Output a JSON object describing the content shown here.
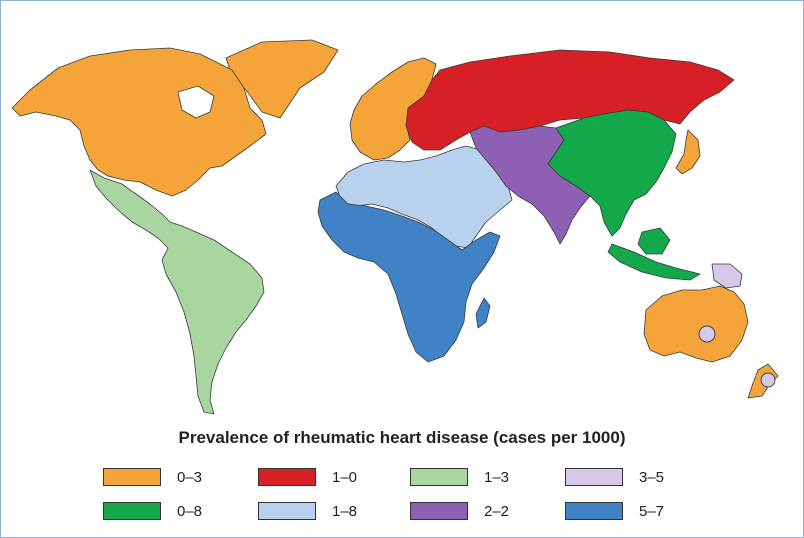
{
  "legend": {
    "title": "Prevalence of rheumatic heart disease (cases per 1000)",
    "items": [
      {
        "label": "0–3",
        "color": "#f5a43a"
      },
      {
        "label": "1–0",
        "color": "#d71f26"
      },
      {
        "label": "1–3",
        "color": "#a8d5a0"
      },
      {
        "label": "3–5",
        "color": "#d6c8e8"
      },
      {
        "label": "0–8",
        "color": "#13a84a"
      },
      {
        "label": "1–8",
        "color": "#b7d1ef"
      },
      {
        "label": "2–2",
        "color": "#8e60b4"
      },
      {
        "label": "5–7",
        "color": "#3f82c6"
      }
    ]
  },
  "regions": [
    {
      "name": "north-america",
      "category": "0–3"
    },
    {
      "name": "europe",
      "category": "0–3"
    },
    {
      "name": "australia",
      "category": "0–3"
    },
    {
      "name": "russia-eastern-europe",
      "category": "1–0"
    },
    {
      "name": "latin-america",
      "category": "1–3"
    },
    {
      "name": "pacific-islands",
      "category": "3–5"
    },
    {
      "name": "east-southeast-asia",
      "category": "0–8"
    },
    {
      "name": "north-africa-middle-east",
      "category": "1–8"
    },
    {
      "name": "central-south-asia",
      "category": "2–2"
    },
    {
      "name": "sub-saharan-africa",
      "category": "5–7"
    }
  ]
}
